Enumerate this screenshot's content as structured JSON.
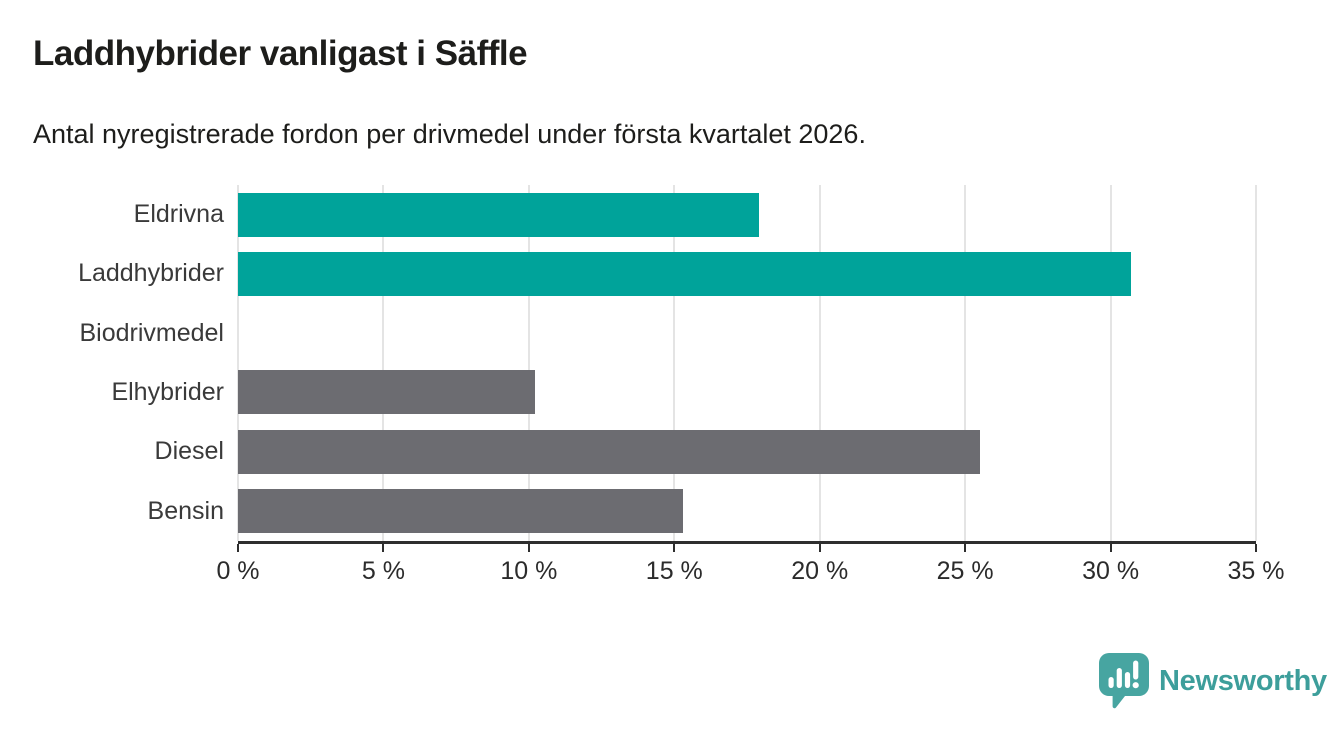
{
  "chart_data": {
    "type": "bar",
    "orientation": "horizontal",
    "title": "Laddhybrider vanligast i Säffle",
    "subtitle": "Antal nyregistrerade fordon per drivmedel under första kvartalet 2026.",
    "categories": [
      "Eldrivna",
      "Laddhybrider",
      "Biodrivmedel",
      "Elhybrider",
      "Diesel",
      "Bensin"
    ],
    "values": [
      17.9,
      30.7,
      0,
      10.2,
      25.5,
      15.3
    ],
    "unit": "%",
    "xlabel": "",
    "ylabel": "",
    "xlim": [
      0,
      35
    ],
    "xticks": [
      {
        "value": 0,
        "label": "0 %"
      },
      {
        "value": 5,
        "label": "5 %"
      },
      {
        "value": 10,
        "label": "10 %"
      },
      {
        "value": 15,
        "label": "15 %"
      },
      {
        "value": 20,
        "label": "20 %"
      },
      {
        "value": 25,
        "label": "25 %"
      },
      {
        "value": 30,
        "label": "30 %"
      },
      {
        "value": 35,
        "label": "35 %"
      }
    ],
    "bar_colors": [
      "#00a39a",
      "#00a39a",
      "#6c6c71",
      "#6c6c71",
      "#6c6c71",
      "#6c6c71"
    ],
    "grid": "vertical",
    "legend_position": "none"
  },
  "colors": {
    "highlight_teal": "#00a39a",
    "bar_gray": "#6c6c71",
    "gridline": "#e4e4e4",
    "axis": "#2e2e2e",
    "title_text": "#1d1d1b",
    "category_label": "#3a3a3a",
    "brand_teal": "#3d9e9b"
  },
  "footer": {
    "brand": "Newsworthy",
    "logo_icon": "newsworthy-speech-bubble-bar-chart-icon"
  }
}
